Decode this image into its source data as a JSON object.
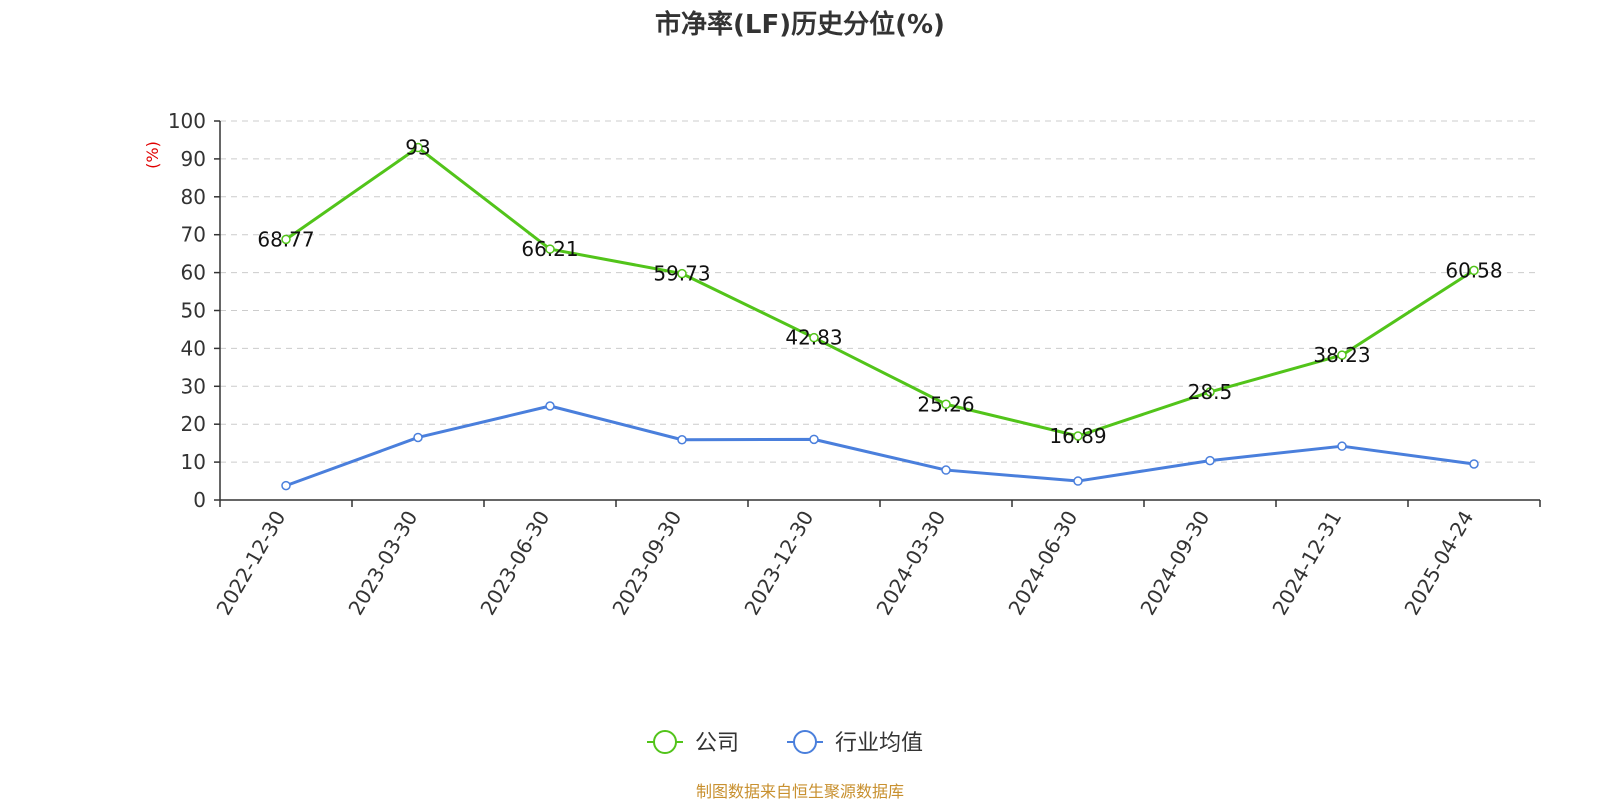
{
  "chart_data": {
    "type": "line",
    "title": "市净率(LF)历史分位(%)",
    "ylabel": "(%)",
    "xlabel": "",
    "ylim": [
      0,
      100
    ],
    "yticks": [
      0,
      10,
      20,
      30,
      40,
      50,
      60,
      70,
      80,
      90,
      100
    ],
    "categories": [
      "2022-12-30",
      "2023-03-30",
      "2023-06-30",
      "2023-09-30",
      "2023-12-30",
      "2024-03-30",
      "2024-06-30",
      "2024-09-30",
      "2024-12-31",
      "2025-04-24"
    ],
    "series": [
      {
        "name": "公司",
        "color": "#52c41a",
        "values": [
          68.77,
          93,
          66.21,
          59.73,
          42.83,
          25.26,
          16.89,
          28.5,
          38.23,
          60.58
        ],
        "labels": [
          "68.77",
          "93",
          "66.21",
          "59.73",
          "42.83",
          "25.26",
          "16.89",
          "28.5",
          "38.23",
          "60.58"
        ]
      },
      {
        "name": "行业均值",
        "color": "#4a7fdc",
        "values": [
          3.8,
          16.5,
          24.8,
          15.9,
          16.0,
          7.9,
          5.0,
          10.4,
          14.2,
          9.5
        ]
      }
    ],
    "grid": true,
    "legend_position": "bottom-center"
  },
  "source_note": "制图数据来自恒生聚源数据库"
}
